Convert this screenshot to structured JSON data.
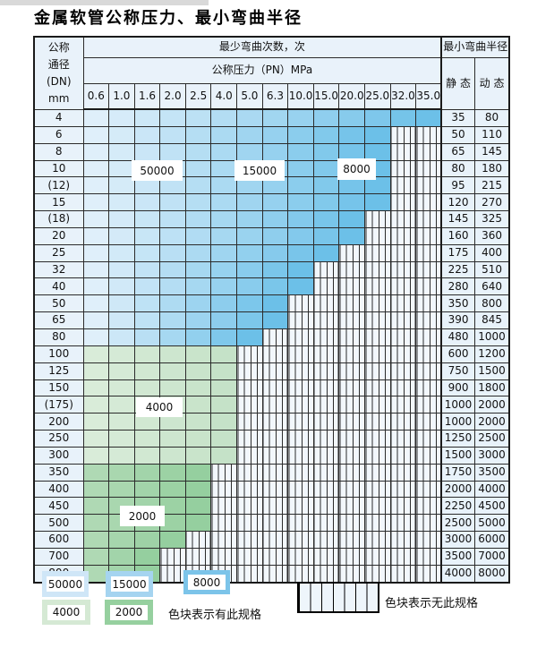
{
  "title": "金属软管公称压力、最小弯曲半径",
  "table": {
    "dn_header_lines": [
      "公称",
      "通径",
      "(DN)",
      "mm"
    ],
    "cycles_header": "最少弯曲次数，次",
    "pressure_header": "公称压力（PN）MPa",
    "radius_header": "最小弯曲半径",
    "static_label": "静 态",
    "dynamic_label": "动 态",
    "pressure_cols": [
      "0.6",
      "1.0",
      "1.6",
      "2.0",
      "2.5",
      "4.0",
      "5.0",
      "6.3",
      "10.0",
      "15.0",
      "20.0",
      "25.0",
      "32.0",
      "35.0"
    ],
    "rows": [
      {
        "dn": "4",
        "max_pn": "35.0",
        "band": "blue",
        "static": "35",
        "dynamic": "80"
      },
      {
        "dn": "6",
        "max_pn": "25.0",
        "band": "blue",
        "static": "50",
        "dynamic": "110"
      },
      {
        "dn": "8",
        "max_pn": "25.0",
        "band": "blue",
        "static": "65",
        "dynamic": "145"
      },
      {
        "dn": "10",
        "max_pn": "25.0",
        "band": "blue",
        "static": "80",
        "dynamic": "180"
      },
      {
        "dn": "(12)",
        "max_pn": "25.0",
        "band": "blue",
        "static": "95",
        "dynamic": "215"
      },
      {
        "dn": "15",
        "max_pn": "25.0",
        "band": "blue",
        "static": "120",
        "dynamic": "270"
      },
      {
        "dn": "(18)",
        "max_pn": "20.0",
        "band": "blue",
        "static": "145",
        "dynamic": "325"
      },
      {
        "dn": "20",
        "max_pn": "20.0",
        "band": "blue",
        "static": "160",
        "dynamic": "360"
      },
      {
        "dn": "25",
        "max_pn": "15.0",
        "band": "blue",
        "static": "175",
        "dynamic": "400"
      },
      {
        "dn": "32",
        "max_pn": "10.0",
        "band": "blue",
        "static": "225",
        "dynamic": "510"
      },
      {
        "dn": "40",
        "max_pn": "10.0",
        "band": "blue",
        "static": "280",
        "dynamic": "640"
      },
      {
        "dn": "50",
        "max_pn": "6.3",
        "band": "blue",
        "static": "350",
        "dynamic": "800"
      },
      {
        "dn": "65",
        "max_pn": "6.3",
        "band": "blue",
        "static": "390",
        "dynamic": "845"
      },
      {
        "dn": "80",
        "max_pn": "5.0",
        "band": "blue",
        "static": "480",
        "dynamic": "1000"
      },
      {
        "dn": "100",
        "max_pn": "4.0",
        "band": "green_4000",
        "static": "600",
        "dynamic": "1200"
      },
      {
        "dn": "125",
        "max_pn": "4.0",
        "band": "green_4000",
        "static": "750",
        "dynamic": "1500"
      },
      {
        "dn": "150",
        "max_pn": "4.0",
        "band": "green_4000",
        "static": "900",
        "dynamic": "1800"
      },
      {
        "dn": "(175)",
        "max_pn": "4.0",
        "band": "green_4000",
        "static": "1000",
        "dynamic": "2000"
      },
      {
        "dn": "200",
        "max_pn": "4.0",
        "band": "green_4000",
        "static": "1000",
        "dynamic": "2000"
      },
      {
        "dn": "250",
        "max_pn": "4.0",
        "band": "green_4000",
        "static": "1250",
        "dynamic": "2500"
      },
      {
        "dn": "300",
        "max_pn": "4.0",
        "band": "green_4000",
        "static": "1500",
        "dynamic": "3000"
      },
      {
        "dn": "350",
        "max_pn": "2.5",
        "band": "green_2000",
        "static": "1750",
        "dynamic": "3500"
      },
      {
        "dn": "400",
        "max_pn": "2.5",
        "band": "green_2000",
        "static": "2000",
        "dynamic": "4000"
      },
      {
        "dn": "450",
        "max_pn": "2.5",
        "band": "green_2000",
        "static": "2250",
        "dynamic": "4500"
      },
      {
        "dn": "500",
        "max_pn": "2.5",
        "band": "green_2000",
        "static": "2500",
        "dynamic": "5000"
      },
      {
        "dn": "600",
        "max_pn": "2.0",
        "band": "green_2000",
        "static": "3000",
        "dynamic": "6000"
      },
      {
        "dn": "700",
        "max_pn": "1.6",
        "band": "green_2000",
        "static": "3500",
        "dynamic": "7000"
      },
      {
        "dn": "800",
        "max_pn": "1.6",
        "band": "green_2000",
        "static": "4000",
        "dynamic": "8000"
      }
    ]
  },
  "cycle_labels": [
    {
      "id": "50000",
      "text": "50000"
    },
    {
      "id": "15000",
      "text": "15000"
    },
    {
      "id": "8000",
      "text": "8000"
    },
    {
      "id": "4000",
      "text": "4000"
    },
    {
      "id": "2000",
      "text": "2000"
    }
  ],
  "legend": {
    "swatches": [
      {
        "id": "50000",
        "label": "50000",
        "color_key": "legend_50000"
      },
      {
        "id": "15000",
        "label": "15000",
        "color_key": "legend_15000"
      },
      {
        "id": "8000",
        "label": "8000",
        "color_key": "legend_8000"
      },
      {
        "id": "4000",
        "label": "4000",
        "color_key": "legend_4000"
      },
      {
        "id": "2000",
        "label": "2000",
        "color_key": "legend_2000"
      }
    ],
    "has_spec_text": "色块表示有此规格",
    "no_spec_text": "色块表示无此规格"
  },
  "colors": {
    "grid": "#2b2b2b",
    "label_bg": "#e8f2fa",
    "hatch_bg": "#f2f7fc",
    "blue_start": "#dfeffa",
    "blue_end": "#6cc0e8",
    "green_4000_start": "#d9ecd9",
    "green_4000_end": "#c5e2c8",
    "green_2000_start": "#afd9b4",
    "green_2000_end": "#95cf9f",
    "legend_50000": "#cfe6f7",
    "legend_15000": "#a5d4f0",
    "legend_8000": "#7cc4e9",
    "legend_4000": "#d5e9d4",
    "legend_2000": "#96d09f"
  }
}
